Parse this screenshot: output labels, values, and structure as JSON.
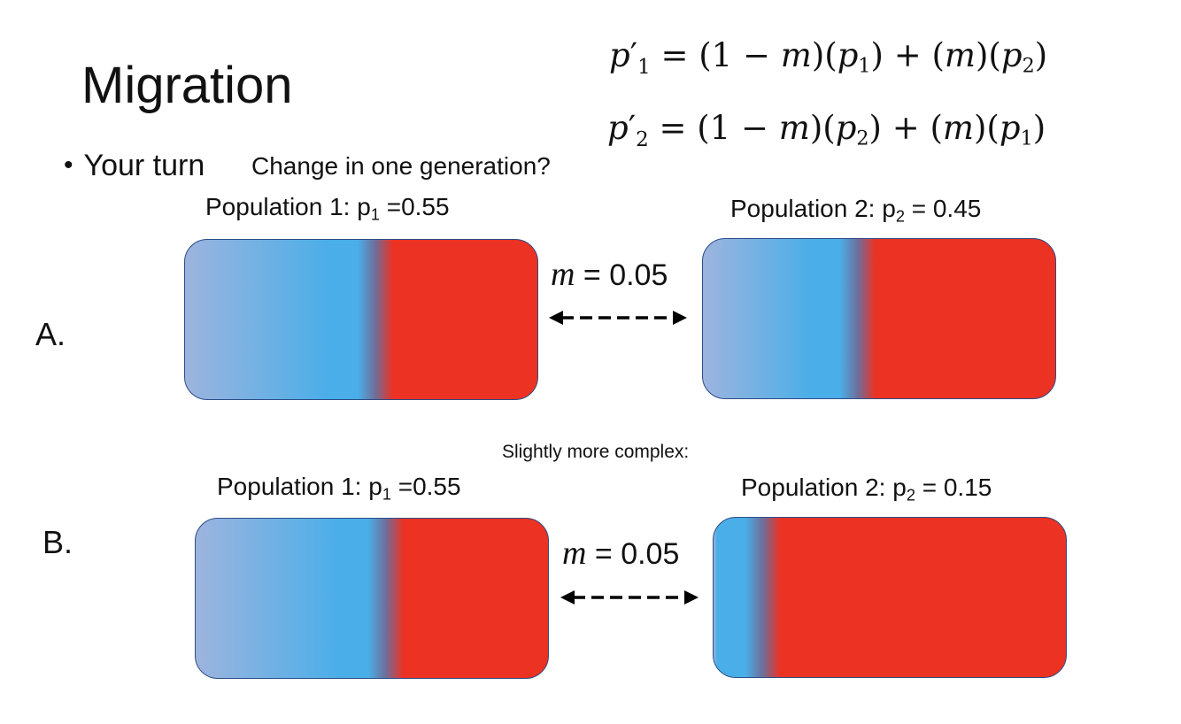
{
  "slide": {
    "title": "Migration",
    "bullet": "Your turn",
    "question": "Change in one generation?",
    "subheading": "Slightly more complex:"
  },
  "formulas": {
    "f1": {
      "lhs_var": "p",
      "lhs_prime": "′",
      "lhs_sub": "1",
      "rhs": "= (1 − m)(p1) + (m)(p2)"
    },
    "f2": {
      "lhs_var": "p",
      "lhs_prime": "′",
      "lhs_sub": "2",
      "rhs": "= (1 − m)(p2) + (m)(p1)"
    }
  },
  "scenarios": [
    {
      "letter": "A.",
      "pop1": {
        "prefix": "Population 1: p",
        "sub": "1",
        "suffix": " =0.55",
        "p": 0.55
      },
      "pop2": {
        "prefix": "Population 2: p",
        "sub": "2",
        "suffix": " = 0.45",
        "p": 0.45
      },
      "m_var": "m",
      "m_value": " = 0.05"
    },
    {
      "letter": "B.",
      "pop1": {
        "prefix": "Population 1: p",
        "sub": "1",
        "suffix": " =0.55",
        "p": 0.55
      },
      "pop2": {
        "prefix": "Population 2: p",
        "sub": "2",
        "suffix": " = 0.15",
        "p": 0.15
      },
      "m_var": "m",
      "m_value": " = 0.05"
    }
  ],
  "colors": {
    "blue_light": "#9db4de",
    "blue": "#4aaee8",
    "red": "#ec3223",
    "border": "#2e4d86"
  }
}
